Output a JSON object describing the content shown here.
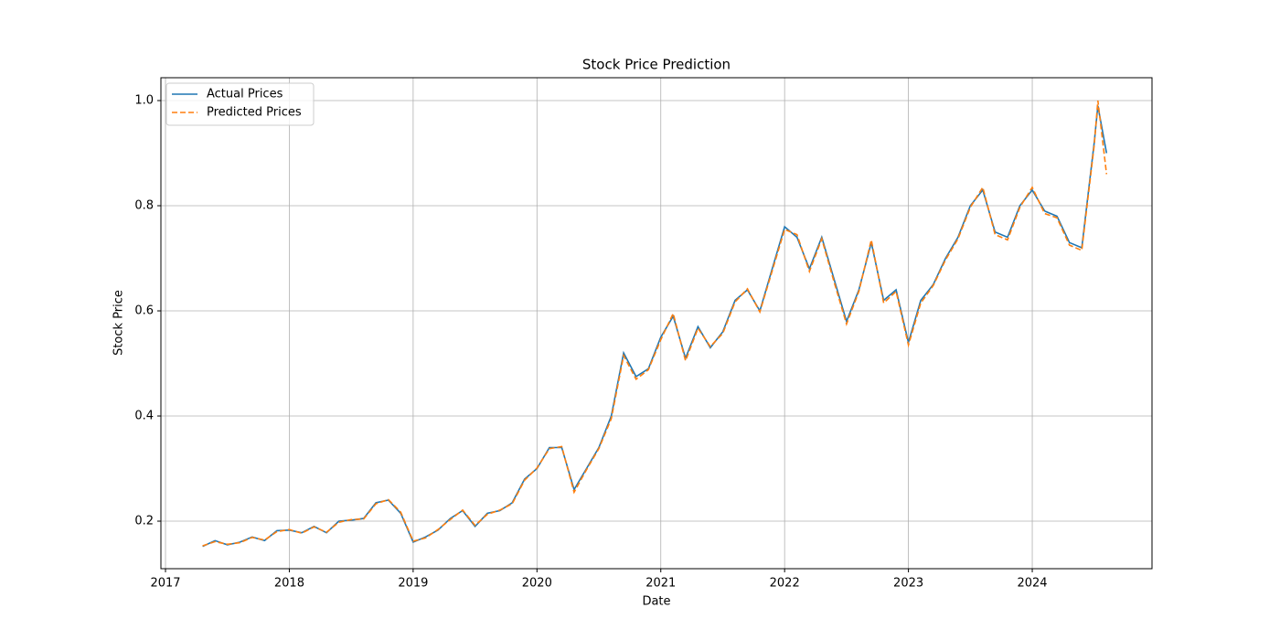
{
  "chart_data": {
    "type": "line",
    "title": "Stock Price Prediction",
    "x_label": "Date",
    "y_label": "Stock Price",
    "x": [
      2017.3,
      2017.4,
      2017.5,
      2017.6,
      2017.7,
      2017.8,
      2017.9,
      2018.0,
      2018.1,
      2018.2,
      2018.3,
      2018.4,
      2018.5,
      2018.6,
      2018.7,
      2018.8,
      2018.9,
      2019.0,
      2019.1,
      2019.2,
      2019.3,
      2019.4,
      2019.5,
      2019.6,
      2019.7,
      2019.8,
      2019.9,
      2020.0,
      2020.1,
      2020.2,
      2020.3,
      2020.4,
      2020.5,
      2020.6,
      2020.7,
      2020.8,
      2020.9,
      2021.0,
      2021.1,
      2021.2,
      2021.3,
      2021.4,
      2021.5,
      2021.6,
      2021.7,
      2021.8,
      2021.9,
      2022.0,
      2022.1,
      2022.2,
      2022.3,
      2022.4,
      2022.5,
      2022.6,
      2022.7,
      2022.8,
      2022.9,
      2023.0,
      2023.1,
      2023.2,
      2023.3,
      2023.4,
      2023.5,
      2023.6,
      2023.7,
      2023.8,
      2023.9,
      2024.0,
      2024.1,
      2024.2,
      2024.3,
      2024.4,
      2024.5,
      2024.53,
      2024.6
    ],
    "series": [
      {
        "name": "Actual Prices",
        "color": "#1f77b4",
        "dash": false,
        "values": [
          0.152,
          0.163,
          0.155,
          0.16,
          0.17,
          0.163,
          0.182,
          0.183,
          0.178,
          0.19,
          0.178,
          0.2,
          0.202,
          0.205,
          0.235,
          0.24,
          0.215,
          0.16,
          0.17,
          0.183,
          0.205,
          0.22,
          0.19,
          0.215,
          0.22,
          0.235,
          0.28,
          0.3,
          0.34,
          0.34,
          0.26,
          0.3,
          0.34,
          0.4,
          0.52,
          0.475,
          0.49,
          0.55,
          0.59,
          0.51,
          0.57,
          0.53,
          0.56,
          0.62,
          0.64,
          0.6,
          0.68,
          0.76,
          0.74,
          0.68,
          0.74,
          0.66,
          0.58,
          0.64,
          0.73,
          0.62,
          0.64,
          0.54,
          0.62,
          0.65,
          0.7,
          0.74,
          0.8,
          0.83,
          0.75,
          0.74,
          0.8,
          0.83,
          0.79,
          0.78,
          0.73,
          0.72,
          0.92,
          0.99,
          0.9
        ]
      },
      {
        "name": "Predicted Prices",
        "color": "#ff7f0e",
        "dash": true,
        "values": [
          0.153,
          0.161,
          0.156,
          0.159,
          0.169,
          0.164,
          0.18,
          0.184,
          0.177,
          0.189,
          0.179,
          0.198,
          0.203,
          0.204,
          0.233,
          0.241,
          0.217,
          0.162,
          0.168,
          0.184,
          0.203,
          0.221,
          0.192,
          0.213,
          0.221,
          0.233,
          0.278,
          0.301,
          0.338,
          0.342,
          0.255,
          0.298,
          0.338,
          0.395,
          0.515,
          0.47,
          0.488,
          0.545,
          0.595,
          0.505,
          0.567,
          0.532,
          0.557,
          0.617,
          0.642,
          0.598,
          0.676,
          0.755,
          0.745,
          0.675,
          0.737,
          0.655,
          0.575,
          0.637,
          0.735,
          0.615,
          0.637,
          0.535,
          0.615,
          0.648,
          0.697,
          0.737,
          0.797,
          0.835,
          0.745,
          0.735,
          0.797,
          0.835,
          0.785,
          0.777,
          0.725,
          0.715,
          0.915,
          1.0,
          0.86
        ]
      }
    ],
    "xlim": [
      2016.963,
      2024.967
    ],
    "xticks": [
      2017,
      2018,
      2019,
      2020,
      2021,
      2022,
      2023,
      2024
    ],
    "ylim": [
      0.1096,
      1.0435
    ],
    "yticks": [
      0.2,
      0.4,
      0.6,
      0.8,
      {
        "value": 1.0,
        "label": "1.0"
      }
    ],
    "grid": true,
    "legend": "upper-left"
  }
}
